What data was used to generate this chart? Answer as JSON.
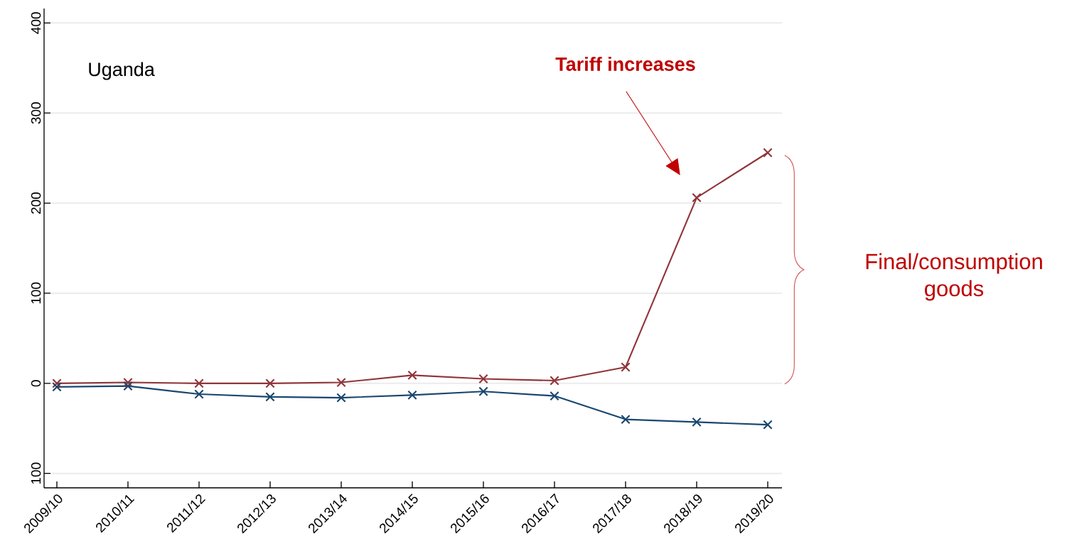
{
  "chart_data": {
    "type": "line",
    "categories": [
      "2009/10",
      "2010/11",
      "2011/12",
      "2012/13",
      "2013/14",
      "2014/15",
      "2015/16",
      "2016/17",
      "2017/18",
      "2018/19",
      "2019/20"
    ],
    "series": [
      {
        "color": "#90353b",
        "values": [
          0,
          1,
          0,
          0,
          1,
          9,
          5,
          3,
          18,
          206,
          256
        ]
      },
      {
        "color": "#1a476f",
        "values": [
          -4,
          -3,
          -12,
          -15,
          -16,
          -13,
          -9,
          -14,
          -40,
          -43,
          -46
        ]
      }
    ],
    "ylim": [
      -116,
      416
    ],
    "yticks": [
      {
        "value": -100,
        "label": "100"
      },
      0,
      100,
      200,
      300,
      400
    ],
    "grid": "y",
    "marker": "cross",
    "line_style": "solid",
    "annotations": [
      "Uganda",
      "Tariff increases",
      "Final/consumption goods"
    ]
  }
}
